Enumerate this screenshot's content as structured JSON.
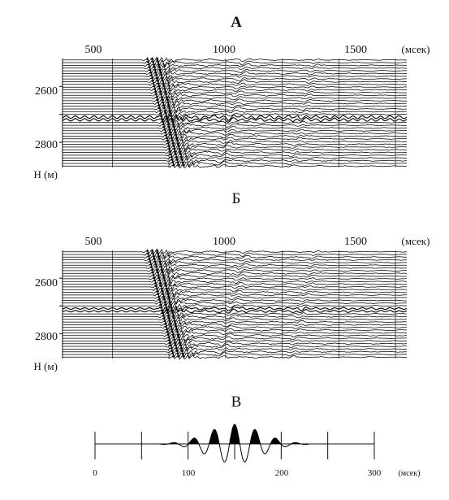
{
  "panels": [
    {
      "label": "А",
      "time_ticks": [
        "500",
        "1000",
        "1500"
      ],
      "time_unit": "(мсек)",
      "depth_ticks": [
        "2600",
        "2800"
      ],
      "depth_label": "H (м)"
    },
    {
      "label": "Б",
      "time_ticks": [
        "500",
        "1000",
        "1500"
      ],
      "time_unit": "(мсек)",
      "depth_ticks": [
        "2600",
        "2800"
      ],
      "depth_label": "H (м)"
    }
  ],
  "wavelet": {
    "label": "В",
    "time_ticks": [
      "0",
      "100",
      "200",
      "300"
    ],
    "time_unit": "(мсек)"
  },
  "chart_data": [
    {
      "type": "seismogram",
      "title": "А",
      "x_ticks": [
        500,
        1000,
        1500
      ],
      "x_unit": "(мсек)",
      "y_ticks": [
        2600,
        2800
      ],
      "y_label": "H (м)",
      "y_reversed": true,
      "xlim": [
        280,
        1800
      ],
      "ylim": [
        2500,
        2890
      ],
      "traces": 40,
      "noisy_depth": 2715
    },
    {
      "type": "seismogram",
      "title": "Б",
      "x_ticks": [
        500,
        1000,
        1500
      ],
      "x_unit": "(мсек)",
      "y_ticks": [
        2600,
        2800
      ],
      "y_label": "H (м)",
      "y_reversed": true,
      "xlim": [
        280,
        1800
      ],
      "ylim": [
        2500,
        2890
      ],
      "traces": 40,
      "noisy_depth": 2715
    },
    {
      "type": "line",
      "title": "В",
      "x_ticks": [
        0,
        50,
        100,
        150,
        200,
        250,
        300
      ],
      "x_labels": [
        0,
        100,
        200,
        300
      ],
      "x_unit": "(мсек)",
      "xlim": [
        0,
        300
      ],
      "wavelet_center": 150,
      "wavelet_period": 22,
      "wavelet_decay": 28,
      "ylim": [
        -1,
        1
      ]
    }
  ]
}
